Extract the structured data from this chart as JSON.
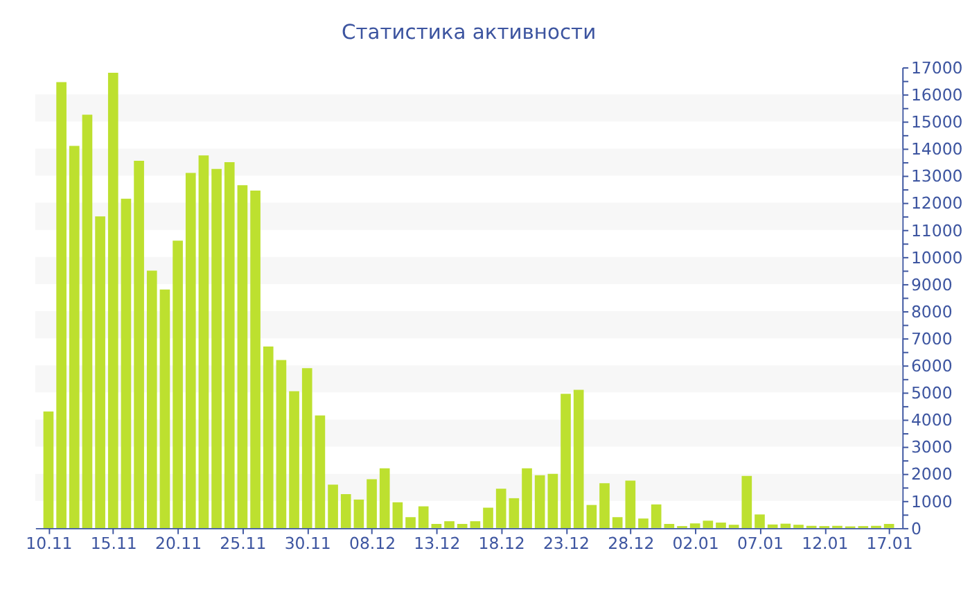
{
  "chart_data": {
    "type": "bar",
    "title": "Статистика активности",
    "categories": [
      "10.11",
      null,
      null,
      null,
      null,
      "15.11",
      null,
      null,
      null,
      null,
      "20.11",
      null,
      null,
      null,
      null,
      "25.11",
      null,
      null,
      null,
      null,
      "30.11",
      null,
      null,
      null,
      null,
      "08.12",
      null,
      null,
      null,
      null,
      "13.12",
      null,
      null,
      null,
      null,
      "18.12",
      null,
      null,
      null,
      null,
      "23.12",
      null,
      null,
      null,
      null,
      "28.12",
      null,
      null,
      null,
      null,
      "02.01",
      null,
      null,
      null,
      null,
      "07.01",
      null,
      null,
      null,
      null,
      "12.01",
      null,
      null,
      null,
      null,
      "17.01"
    ],
    "values": [
      4300,
      16450,
      14100,
      15250,
      11500,
      16800,
      12150,
      13550,
      9500,
      8800,
      10600,
      13100,
      13750,
      13250,
      13500,
      12650,
      12450,
      6700,
      6200,
      5050,
      5900,
      4150,
      1600,
      1250,
      1050,
      1800,
      2200,
      950,
      400,
      800,
      150,
      250,
      150,
      250,
      750,
      1450,
      1100,
      2200,
      1950,
      2000,
      4950,
      5100,
      850,
      1650,
      400,
      1750,
      350,
      870,
      150,
      70,
      170,
      270,
      200,
      120,
      1920,
      500,
      130,
      160,
      120,
      80,
      70,
      80,
      60,
      70,
      80,
      150
    ],
    "color": "#bde02f",
    "ylim": [
      0,
      17000
    ],
    "yticks": [
      0,
      {
        "value": 500,
        "label": null
      },
      1000,
      {
        "value": 1500,
        "label": null
      },
      2000,
      {
        "value": 2500,
        "label": null
      },
      3000,
      {
        "value": 3500,
        "label": null
      },
      4000,
      {
        "value": 4500,
        "label": null
      },
      5000,
      {
        "value": 5500,
        "label": null
      },
      6000,
      {
        "value": 6500,
        "label": null
      },
      7000,
      {
        "value": 7500,
        "label": null
      },
      8000,
      {
        "value": 8500,
        "label": null
      },
      9000,
      {
        "value": 9500,
        "label": null
      },
      10000,
      {
        "value": 10500,
        "label": null
      },
      11000,
      {
        "value": 11500,
        "label": null
      },
      12000,
      {
        "value": 12500,
        "label": null
      },
      13000,
      {
        "value": 13500,
        "label": null
      },
      14000,
      {
        "value": 14500,
        "label": null
      },
      15000,
      {
        "value": 15500,
        "label": null
      },
      16000,
      {
        "value": 16500,
        "label": null
      },
      17000
    ],
    "bands": [
      {
        "axis": "y",
        "from": 1000,
        "to": 2000,
        "color": "#f7f7f7"
      },
      {
        "axis": "y",
        "from": 3000,
        "to": 4000,
        "color": "#f7f7f7"
      },
      {
        "axis": "y",
        "from": 5000,
        "to": 6000,
        "color": "#f7f7f7"
      },
      {
        "axis": "y",
        "from": 7000,
        "to": 8000,
        "color": "#f7f7f7"
      },
      {
        "axis": "y",
        "from": 9000,
        "to": 10000,
        "color": "#f7f7f7"
      },
      {
        "axis": "y",
        "from": 11000,
        "to": 12000,
        "color": "#f7f7f7"
      },
      {
        "axis": "y",
        "from": 13000,
        "to": 14000,
        "color": "#f7f7f7"
      },
      {
        "axis": "y",
        "from": 15000,
        "to": 16000,
        "color": "#f7f7f7"
      }
    ]
  }
}
